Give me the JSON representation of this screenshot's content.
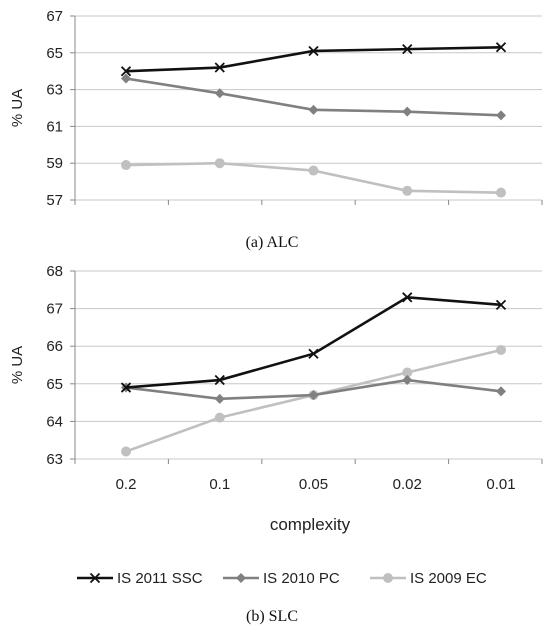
{
  "chart_data": [
    {
      "type": "line",
      "caption": "(a) ALC",
      "ylabel": "% UA",
      "xlabel": "",
      "ylim": [
        57,
        67
      ],
      "yticks": [
        57,
        59,
        61,
        63,
        65,
        67
      ],
      "grid": true,
      "categories": [
        "0.2",
        "0.1",
        "0.05",
        "0.02",
        "0.01"
      ],
      "series": [
        {
          "name": "IS 2011 SSC",
          "color": "#111111",
          "marker": "x",
          "values": [
            64.0,
            64.2,
            65.1,
            65.2,
            65.3
          ]
        },
        {
          "name": "IS 2010 PC",
          "color": "#808080",
          "marker": "diamond",
          "values": [
            63.6,
            62.8,
            61.9,
            61.8,
            61.6
          ]
        },
        {
          "name": "IS 2009 EC",
          "color": "#c0c0c0",
          "marker": "circle",
          "values": [
            58.9,
            59.0,
            58.6,
            57.5,
            57.4
          ]
        }
      ]
    },
    {
      "type": "line",
      "caption": "(b) SLC",
      "ylabel": "% UA",
      "xlabel": "complexity",
      "ylim": [
        63,
        68
      ],
      "yticks": [
        63,
        64,
        65,
        66,
        67,
        68
      ],
      "grid": true,
      "categories": [
        "0.2",
        "0.1",
        "0.05",
        "0.02",
        "0.01"
      ],
      "series": [
        {
          "name": "IS 2011 SSC",
          "color": "#111111",
          "marker": "x",
          "values": [
            64.9,
            65.1,
            65.8,
            67.3,
            67.1
          ]
        },
        {
          "name": "IS 2010 PC",
          "color": "#808080",
          "marker": "diamond",
          "values": [
            64.9,
            64.6,
            64.7,
            65.1,
            64.8
          ]
        },
        {
          "name": "IS 2009 EC",
          "color": "#c0c0c0",
          "marker": "circle",
          "values": [
            63.2,
            64.1,
            64.7,
            65.3,
            65.9
          ]
        }
      ]
    }
  ],
  "legend": {
    "position": "bottom",
    "items": [
      {
        "label": "IS 2011 SSC",
        "color": "#111111",
        "marker": "x"
      },
      {
        "label": "IS 2010 PC",
        "color": "#808080",
        "marker": "diamond"
      },
      {
        "label": "IS 2009 EC",
        "color": "#c0c0c0",
        "marker": "circle"
      }
    ]
  }
}
